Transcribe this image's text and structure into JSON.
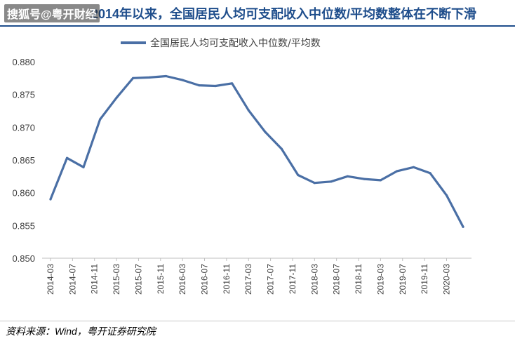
{
  "header": {
    "watermark": "搜狐号@粤开财经",
    "title": "2014年以来，全国居民人均可支配收入中位数/平均数整体在不断下滑"
  },
  "footer": {
    "source": "资料来源：Wind，粤开证券研究院"
  },
  "colors": {
    "line": "#4a6fa5",
    "title": "#1f4e8c",
    "axis": "#bfbfbf",
    "text": "#404040"
  },
  "chart_data": {
    "type": "line",
    "title": "",
    "xlabel": "",
    "ylabel": "",
    "ylim": [
      0.85,
      0.88
    ],
    "yticks": [
      "0.850",
      "0.855",
      "0.860",
      "0.865",
      "0.870",
      "0.875",
      "0.880"
    ],
    "grid": false,
    "legend_position": "top",
    "x_tick_labels": [
      "2014-03",
      "2014-07",
      "2014-11",
      "2015-03",
      "2015-07",
      "2015-11",
      "2016-03",
      "2016-07",
      "2016-11",
      "2017-03",
      "2017-07",
      "2017-11",
      "2018-03",
      "2018-07",
      "2018-11",
      "2019-03",
      "2019-07",
      "2019-11",
      "2020-03"
    ],
    "x": [
      "2014-03",
      "2014-06",
      "2014-09",
      "2014-12",
      "2015-03",
      "2015-06",
      "2015-09",
      "2015-12",
      "2016-03",
      "2016-06",
      "2016-09",
      "2016-12",
      "2017-03",
      "2017-06",
      "2017-09",
      "2017-12",
      "2018-03",
      "2018-06",
      "2018-09",
      "2018-12",
      "2019-03",
      "2019-06",
      "2019-09",
      "2019-12",
      "2020-03",
      "2020-06"
    ],
    "series": [
      {
        "name": "全国居民人均可支配收入中位数/平均数",
        "values": [
          0.859,
          0.8653,
          0.8639,
          0.8712,
          0.8745,
          0.8775,
          0.8776,
          0.8778,
          0.8772,
          0.8764,
          0.8763,
          0.8767,
          0.8726,
          0.8693,
          0.8667,
          0.8627,
          0.8615,
          0.8617,
          0.8625,
          0.8621,
          0.8619,
          0.8633,
          0.8639,
          0.863,
          0.8596,
          0.8548
        ]
      }
    ]
  }
}
